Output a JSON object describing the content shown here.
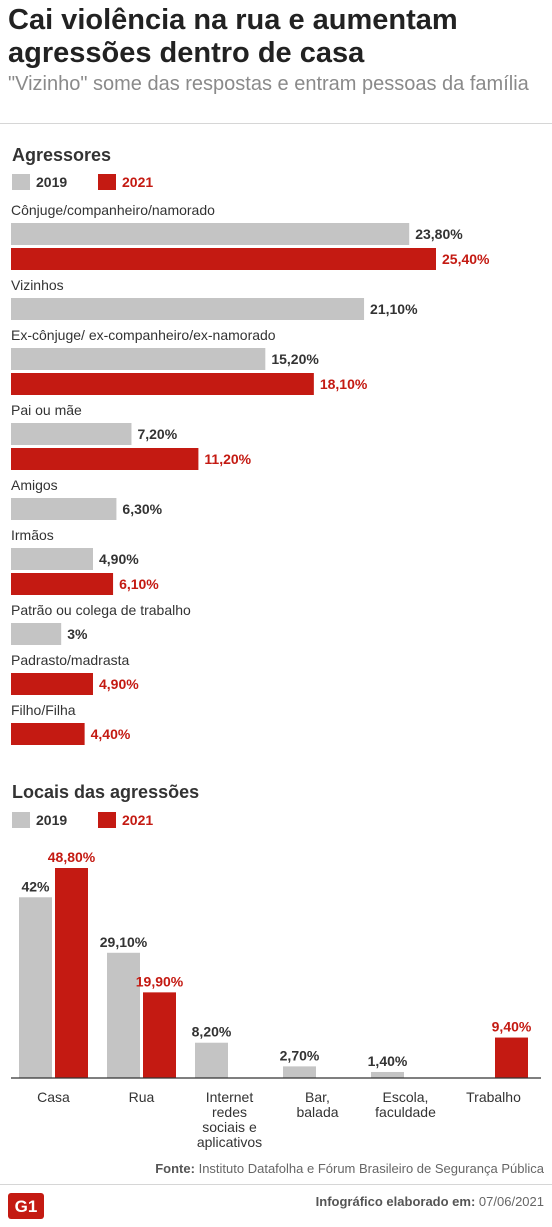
{
  "header": {
    "title": "Cai violência na rua e aumentam agressões dentro de casa",
    "subtitle": "\"Vizinho\" some das respostas e entram pessoas da família"
  },
  "colors": {
    "y2019": "#c4c4c4",
    "y2021": "#c41a12",
    "text": "#333333"
  },
  "chart_data": [
    {
      "type": "bar",
      "orientation": "horizontal",
      "title": "Agressores",
      "legend": [
        "2019",
        "2021"
      ],
      "legend_position": "top-left",
      "categories": [
        "Cônjuge/companheiro/namorado",
        "Vizinhos",
        "Ex-cônjuge/ ex-companheiro/ex-namorado",
        "Pai ou mãe",
        "Amigos",
        "Irmãos",
        "Patrão ou colega de trabalho",
        "Padrasto/madrasta",
        "Filho/Filha"
      ],
      "series": [
        {
          "name": "2019",
          "values": [
            23.8,
            21.1,
            15.2,
            7.2,
            6.3,
            4.9,
            3.0,
            null,
            null
          ],
          "labels": [
            "23,80%",
            "21,10%",
            "15,20%",
            "7,20%",
            "6,30%",
            "4,90%",
            "3%",
            "",
            ""
          ]
        },
        {
          "name": "2021",
          "values": [
            25.4,
            null,
            18.1,
            11.2,
            null,
            6.1,
            null,
            4.9,
            4.4
          ],
          "labels": [
            "25,40%",
            "",
            "18,10%",
            "11,20%",
            "",
            "6,10%",
            "",
            "4,90%",
            "4,40%"
          ]
        }
      ],
      "xlim": [
        0,
        25.4
      ],
      "grid": false
    },
    {
      "type": "bar",
      "orientation": "vertical",
      "title": "Locais das agressões",
      "legend": [
        "2019",
        "2021"
      ],
      "legend_position": "top-left",
      "categories": [
        "Casa",
        "Rua",
        "Internet redes sociais e aplicativos",
        "Bar, balada",
        "Escola, faculdade",
        "Trabalho"
      ],
      "category_lines": [
        [
          "Casa"
        ],
        [
          "Rua"
        ],
        [
          "Internet",
          "redes",
          "sociais e",
          "aplicativos"
        ],
        [
          "Bar,",
          "balada"
        ],
        [
          "Escola,",
          "faculdade"
        ],
        [
          "Trabalho"
        ]
      ],
      "series": [
        {
          "name": "2019",
          "values": [
            42.0,
            29.1,
            8.2,
            2.7,
            1.4,
            null
          ],
          "labels": [
            "42%",
            "29,10%",
            "8,20%",
            "2,70%",
            "1,40%",
            ""
          ]
        },
        {
          "name": "2021",
          "values": [
            48.8,
            19.9,
            null,
            null,
            null,
            9.4
          ],
          "labels": [
            "48,80%",
            "19,90%",
            "",
            "",
            "",
            "9,40%"
          ]
        }
      ],
      "ylim": [
        0,
        48.8
      ],
      "grid": false
    }
  ],
  "footer": {
    "source_label": "Fonte:",
    "source_text": "Instituto Datafolha e Fórum Brasileiro de Segurança Pública",
    "credit_label": "Infográfico elaborado em:",
    "credit_date": "07/06/2021",
    "logo_text": "G1"
  }
}
